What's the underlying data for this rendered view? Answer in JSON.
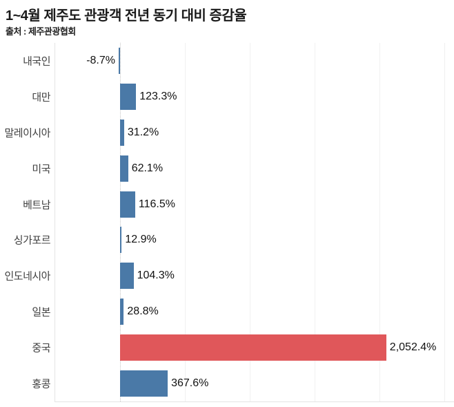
{
  "header": {
    "title": "1~4월 제주도 관광객 전년 동기 대비 증감율",
    "source": "출처 : 제주관광협회"
  },
  "colors": {
    "bar_default": "#4a79a7",
    "bar_highlight": "#e0575a",
    "gridline": "#f0f0f0",
    "zero_line": "#c3c3c3"
  },
  "chart_data": {
    "type": "bar",
    "orientation": "horizontal",
    "title": "1~4월 제주도 관광객 전년 동기 대비 증감율",
    "subtitle": "출처 : 제주관광협회",
    "xlabel": "",
    "ylabel": "",
    "unit": "%",
    "categories": [
      "내국인",
      "대만",
      "말레이시아",
      "미국",
      "베트남",
      "싱가포르",
      "인도네시아",
      "일본",
      "중국",
      "홍콩"
    ],
    "values": [
      -8.7,
      123.3,
      31.2,
      62.1,
      116.5,
      12.9,
      104.3,
      28.8,
      2052.4,
      367.6
    ],
    "value_labels": [
      "-8.7%",
      "123.3%",
      "31.2%",
      "62.1%",
      "116.5%",
      "12.9%",
      "104.3%",
      "28.8%",
      "2,052.4%",
      "367.6%"
    ],
    "bar_colors": [
      "#4a79a7",
      "#4a79a7",
      "#4a79a7",
      "#4a79a7",
      "#4a79a7",
      "#4a79a7",
      "#4a79a7",
      "#4a79a7",
      "#e0575a",
      "#4a79a7"
    ],
    "xlim": [
      -500,
      2580
    ],
    "grid_step": 500,
    "grid": "vertical",
    "zero_line_style": "dotted",
    "legend": "none",
    "value_labels_shown": true,
    "axis_tick_labels_shown": false
  }
}
